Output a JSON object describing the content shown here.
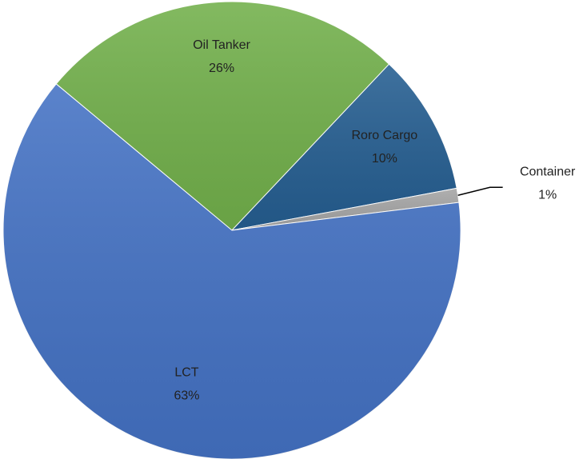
{
  "chart_data": {
    "type": "pie",
    "categories": [
      "Oil Tanker",
      "Roro Cargo",
      "Container",
      "LCT"
    ],
    "values": [
      26,
      10,
      1,
      63
    ],
    "value_labels": [
      "26%",
      "10%",
      "1%",
      "63%"
    ],
    "colors": [
      "#72b04b",
      "#255e91",
      "#a5a5a5",
      "#4472c4"
    ]
  }
}
